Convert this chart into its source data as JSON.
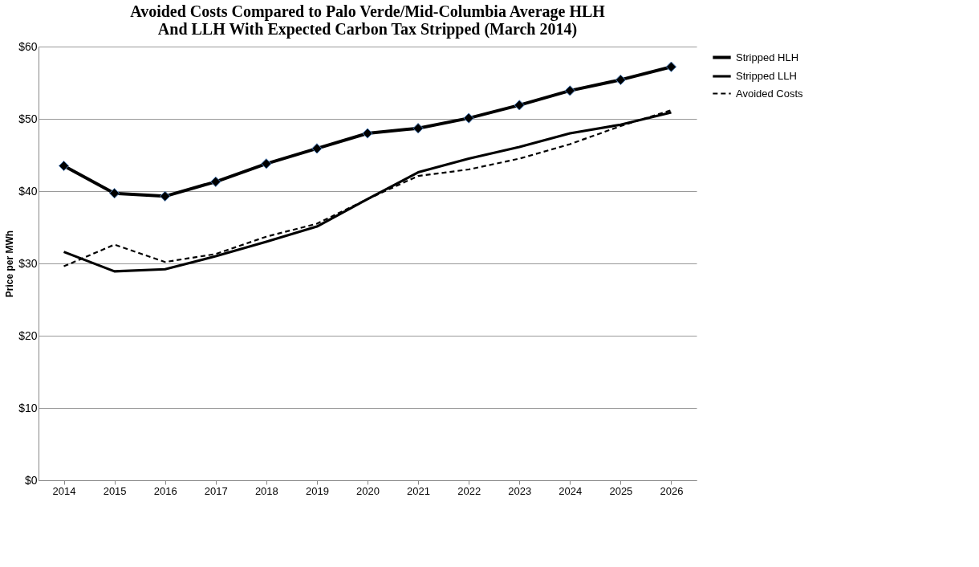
{
  "chart_data": {
    "type": "line",
    "title": "Avoided Costs Compared to Palo Verde/Mid-Columbia Average HLH\nAnd LLH With Expected Carbon Tax Stripped (March 2014)",
    "ylabel": "Price per MWh",
    "categories": [
      "2014",
      "2015",
      "2016",
      "2017",
      "2018",
      "2019",
      "2020",
      "2021",
      "2022",
      "2023",
      "2024",
      "2025",
      "2026"
    ],
    "series": [
      {
        "name": "Stripped HLH",
        "color": "#000000",
        "marker": "diamond",
        "line_style": "solid",
        "values": [
          43.5,
          39.7,
          39.3,
          41.3,
          43.8,
          45.9,
          48.0,
          48.7,
          50.1,
          51.9,
          53.9,
          55.4,
          57.2
        ]
      },
      {
        "name": "Stripped LLH",
        "color": "#000000",
        "marker": "none",
        "line_style": "solid",
        "values": [
          31.6,
          28.9,
          29.2,
          31.0,
          33.0,
          35.1,
          38.9,
          42.6,
          44.5,
          46.1,
          48.0,
          49.2,
          50.9
        ]
      },
      {
        "name": "Avoided Costs",
        "color": "#000000",
        "marker": "none",
        "line_style": "dashed",
        "values": [
          29.6,
          32.6,
          30.2,
          31.3,
          33.7,
          35.5,
          38.9,
          42.1,
          43.0,
          44.5,
          46.5,
          49.0,
          51.2
        ]
      }
    ],
    "ylim": [
      0,
      60
    ],
    "yticks": [
      {
        "value": 0,
        "label": "$0"
      },
      {
        "value": 10,
        "label": "$10"
      },
      {
        "value": 20,
        "label": "$20"
      },
      {
        "value": 30,
        "label": "$30"
      },
      {
        "value": 40,
        "label": "$40"
      },
      {
        "value": 50,
        "label": "$50"
      },
      {
        "value": 60,
        "label": "$60"
      }
    ],
    "grid": "y",
    "legend": "right"
  }
}
